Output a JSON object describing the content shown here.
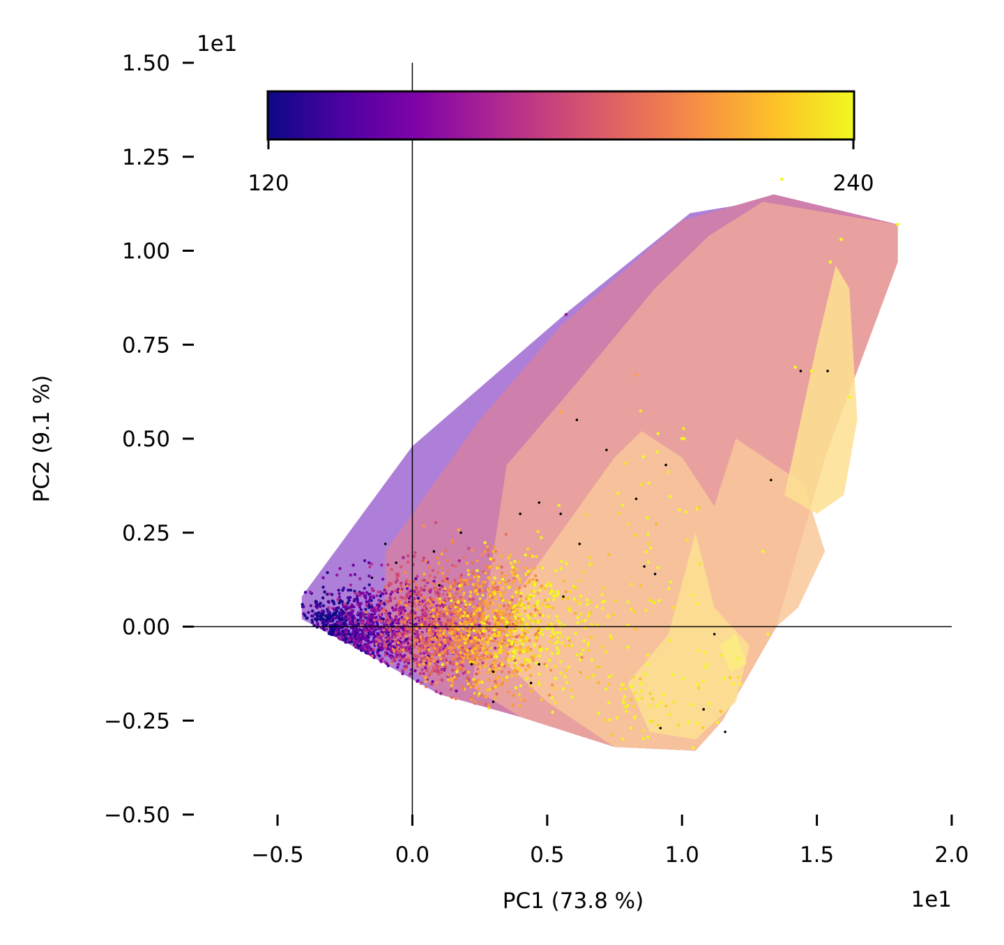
{
  "chart_data": {
    "type": "scatter",
    "title": "",
    "xlabel": "PC1 (73.8 %)",
    "ylabel": "PC2 (9.1 %)",
    "x_offset_label": "1e1",
    "y_offset_label": "1e1",
    "xlim": [
      -0.8,
      2.0
    ],
    "ylim": [
      -0.5,
      1.5
    ],
    "x_ticks": [
      -0.5,
      0.0,
      0.5,
      1.0,
      1.5,
      2.0
    ],
    "x_tick_labels": [
      "−0.5",
      "0.0",
      "0.5",
      "1.0",
      "1.5",
      "2.0"
    ],
    "y_ticks": [
      -0.5,
      -0.25,
      0.0,
      0.25,
      0.5,
      0.75,
      1.0,
      1.25,
      1.5
    ],
    "y_tick_labels": [
      "−0.50",
      "−0.25",
      "0.00",
      "0.25",
      "0.50",
      "0.75",
      "1.00",
      "1.25",
      "1.50"
    ],
    "colorbar": {
      "colormap": "plasma",
      "min_label": "120",
      "max_label": "240",
      "range": [
        120,
        240
      ],
      "orientation": "horizontal",
      "placement": "top"
    },
    "crosshair_lines": {
      "x": 0.0,
      "y": 0.0
    },
    "contour_regions": [
      {
        "value": 150,
        "color": "#9a5fd0",
        "opacity": 0.8,
        "polygon": [
          [
            -0.41,
            0.08
          ],
          [
            0.0,
            0.48
          ],
          [
            0.58,
            0.84
          ],
          [
            1.03,
            1.1
          ],
          [
            1.2,
            1.12
          ],
          [
            1.34,
            1.15
          ],
          [
            1.8,
            1.07
          ],
          [
            1.8,
            0.97
          ],
          [
            1.53,
            0.45
          ],
          [
            1.43,
            0.2
          ],
          [
            1.35,
            0.0
          ],
          [
            1.15,
            -0.25
          ],
          [
            1.05,
            -0.33
          ],
          [
            0.75,
            -0.32
          ],
          [
            0.4,
            -0.24
          ],
          [
            0.1,
            -0.18
          ],
          [
            -0.2,
            -0.06
          ],
          [
            -0.41,
            0.02
          ]
        ]
      },
      {
        "value": 180,
        "color": "#d7809f",
        "opacity": 0.8,
        "polygon": [
          [
            -0.1,
            0.2
          ],
          [
            0.25,
            0.55
          ],
          [
            0.55,
            0.8
          ],
          [
            1.0,
            1.08
          ],
          [
            1.34,
            1.15
          ],
          [
            1.8,
            1.07
          ],
          [
            1.8,
            0.97
          ],
          [
            1.53,
            0.45
          ],
          [
            1.43,
            0.2
          ],
          [
            1.35,
            0.0
          ],
          [
            1.15,
            -0.25
          ],
          [
            1.05,
            -0.33
          ],
          [
            0.75,
            -0.32
          ],
          [
            0.4,
            -0.24
          ],
          [
            0.1,
            -0.18
          ],
          [
            -0.1,
            -0.05
          ]
        ]
      },
      {
        "value": 200,
        "color": "#efaa9c",
        "opacity": 0.8,
        "polygon": [
          [
            0.35,
            0.43
          ],
          [
            0.6,
            0.64
          ],
          [
            0.9,
            0.9
          ],
          [
            1.1,
            1.04
          ],
          [
            1.3,
            1.13
          ],
          [
            1.8,
            1.07
          ],
          [
            1.8,
            0.97
          ],
          [
            1.53,
            0.45
          ],
          [
            1.43,
            0.2
          ],
          [
            1.35,
            0.0
          ],
          [
            1.15,
            -0.25
          ],
          [
            1.05,
            -0.33
          ],
          [
            0.75,
            -0.32
          ],
          [
            0.4,
            -0.24
          ],
          [
            0.22,
            -0.16
          ],
          [
            0.28,
            0.1
          ]
        ]
      },
      {
        "value": 215,
        "color": "#f9c89a",
        "opacity": 0.85,
        "polygon": [
          [
            0.5,
            0.2
          ],
          [
            0.75,
            0.45
          ],
          [
            0.85,
            0.52
          ],
          [
            1.0,
            0.45
          ],
          [
            1.12,
            0.32
          ],
          [
            1.2,
            0.5
          ],
          [
            1.45,
            0.38
          ],
          [
            1.53,
            0.2
          ],
          [
            1.43,
            0.05
          ],
          [
            1.35,
            0.0
          ],
          [
            1.15,
            -0.25
          ],
          [
            1.05,
            -0.33
          ],
          [
            0.75,
            -0.32
          ],
          [
            0.5,
            -0.2
          ],
          [
            0.35,
            -0.1
          ],
          [
            0.4,
            0.1
          ]
        ]
      },
      {
        "value": 225,
        "color": "#fde090",
        "opacity": 0.85,
        "polygon": [
          [
            1.38,
            0.35
          ],
          [
            1.5,
            0.75
          ],
          [
            1.57,
            0.96
          ],
          [
            1.62,
            0.9
          ],
          [
            1.65,
            0.55
          ],
          [
            1.6,
            0.35
          ],
          [
            1.5,
            0.3
          ]
        ]
      },
      {
        "value": 225,
        "color": "#fde090",
        "opacity": 0.85,
        "polygon": [
          [
            0.8,
            -0.15
          ],
          [
            0.95,
            -0.02
          ],
          [
            1.05,
            0.25
          ],
          [
            1.12,
            0.05
          ],
          [
            1.25,
            -0.05
          ],
          [
            1.2,
            -0.2
          ],
          [
            1.05,
            -0.3
          ],
          [
            0.88,
            -0.28
          ]
        ]
      },
      {
        "value": 232,
        "color": "#fcef7c",
        "opacity": 0.75,
        "polygon": [
          [
            1.14,
            -0.05
          ],
          [
            1.2,
            -0.02
          ],
          [
            1.24,
            -0.1
          ],
          [
            1.18,
            -0.12
          ]
        ]
      }
    ],
    "point_clusters": [
      {
        "cx": -0.28,
        "cy": -0.02,
        "sx": 0.08,
        "sy": 0.05,
        "n": 700,
        "color_value": 125
      },
      {
        "cx": -0.12,
        "cy": -0.02,
        "sx": 0.1,
        "sy": 0.07,
        "n": 700,
        "color_value": 150
      },
      {
        "cx": 0.05,
        "cy": -0.01,
        "sx": 0.1,
        "sy": 0.08,
        "n": 700,
        "color_value": 180
      },
      {
        "cx": 0.2,
        "cy": 0.0,
        "sx": 0.1,
        "sy": 0.09,
        "n": 650,
        "color_value": 205
      },
      {
        "cx": 0.32,
        "cy": 0.0,
        "sx": 0.1,
        "sy": 0.09,
        "n": 450,
        "color_value": 220
      },
      {
        "cx": 0.5,
        "cy": 0.0,
        "sx": 0.12,
        "sy": 0.09,
        "n": 260,
        "color_value": 238
      },
      {
        "cx": 0.85,
        "cy": -0.22,
        "sx": 0.08,
        "sy": 0.06,
        "n": 60,
        "color_value": 240
      },
      {
        "cx": 0.9,
        "cy": 0.25,
        "sx": 0.1,
        "sy": 0.15,
        "n": 50,
        "color_value": 240
      },
      {
        "cx": 1.15,
        "cy": -0.15,
        "sx": 0.1,
        "sy": 0.1,
        "n": 30,
        "color_value": 240
      }
    ],
    "outlier_points": [
      {
        "x": 1.37,
        "y": 1.19,
        "c": 240
      },
      {
        "x": 1.8,
        "y": 1.07,
        "c": 240
      },
      {
        "x": 1.59,
        "y": 1.03,
        "c": 240
      },
      {
        "x": 1.55,
        "y": 0.97,
        "c": 240
      },
      {
        "x": 1.42,
        "y": 0.69,
        "c": 240
      },
      {
        "x": 1.48,
        "y": 0.68,
        "c": 240
      },
      {
        "x": 1.62,
        "y": 0.61,
        "c": 240
      },
      {
        "x": 1.0,
        "y": 0.5,
        "c": 240
      },
      {
        "x": 0.57,
        "y": 0.83,
        "c": 160
      },
      {
        "x": 0.83,
        "y": 0.67,
        "c": 215
      },
      {
        "x": 1.3,
        "y": 0.2,
        "c": 240
      },
      {
        "x": 0.55,
        "y": 0.57,
        "c": 215
      }
    ],
    "missing_value_points": [
      [
        1.44,
        0.68
      ],
      [
        1.54,
        0.68
      ],
      [
        0.94,
        0.43
      ],
      [
        1.33,
        0.39
      ],
      [
        0.72,
        0.47
      ],
      [
        0.61,
        0.55
      ],
      [
        0.9,
        0.14
      ],
      [
        0.86,
        0.16
      ],
      [
        0.83,
        0.34
      ],
      [
        0.62,
        0.22
      ],
      [
        0.55,
        0.3
      ],
      [
        0.47,
        0.33
      ],
      [
        1.12,
        -0.02
      ],
      [
        1.16,
        -0.28
      ],
      [
        0.92,
        -0.27
      ],
      [
        1.08,
        -0.22
      ],
      [
        0.56,
        0.08
      ],
      [
        0.47,
        -0.1
      ],
      [
        0.3,
        -0.12
      ],
      [
        -0.1,
        0.22
      ],
      [
        -0.06,
        0.17
      ],
      [
        0.1,
        0.11
      ],
      [
        0.08,
        0.2
      ],
      [
        -0.15,
        0.13
      ],
      [
        0.22,
        -0.1
      ],
      [
        0.35,
        0.0
      ],
      [
        0.44,
        -0.15
      ],
      [
        0.18,
        0.25
      ],
      [
        0.4,
        0.3
      ],
      [
        0.3,
        -0.2
      ]
    ]
  }
}
